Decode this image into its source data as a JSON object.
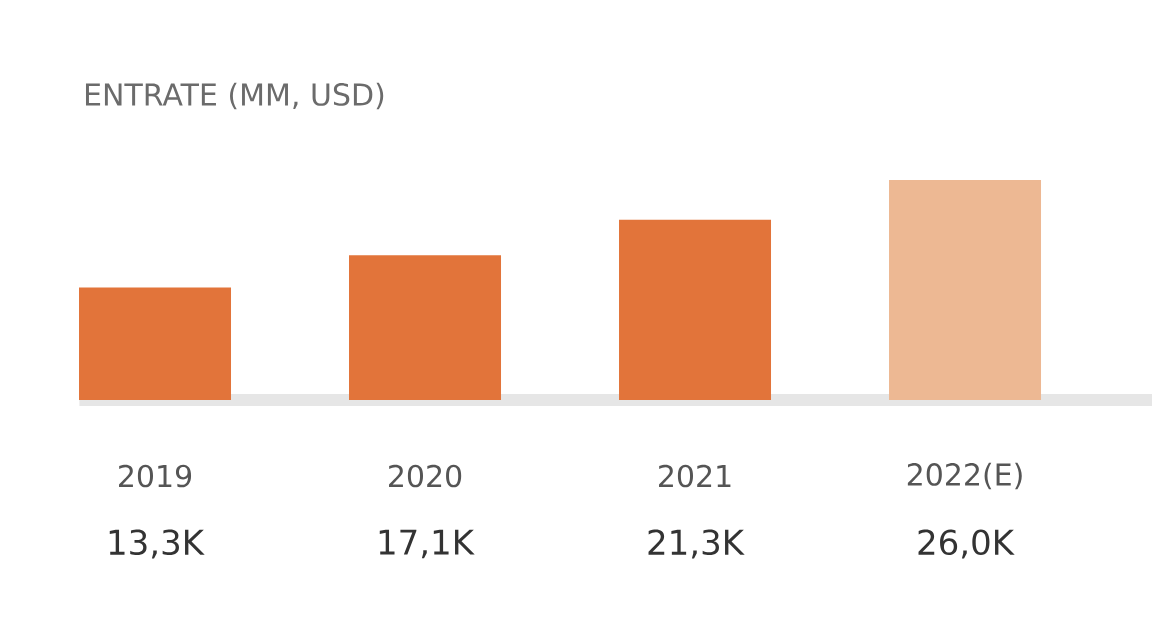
{
  "chart_data": {
    "type": "bar",
    "title": "ENTRATE (MM, USD)",
    "categories": [
      "2019",
      "2020",
      "2021",
      "2022(E)"
    ],
    "values": [
      13.3,
      17.1,
      21.3,
      26.0
    ],
    "value_labels": [
      "13,3K",
      "17,1K",
      "21,3K",
      "26,0K"
    ],
    "colors": [
      "#e2743a",
      "#e2743a",
      "#e2743a",
      "#edb893"
    ]
  }
}
